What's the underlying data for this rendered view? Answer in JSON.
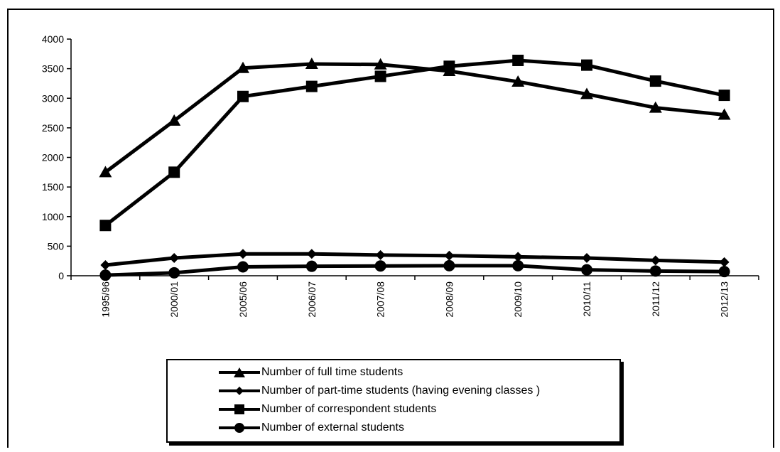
{
  "chart_data": {
    "type": "line",
    "categories": [
      "1995/96",
      "2000/01",
      "2005/06",
      "2006/07",
      "2007/08",
      "2008/09",
      "2009/10",
      "2010/11",
      "2011/12",
      "2012/13"
    ],
    "ylim": [
      0,
      4000
    ],
    "yticks": [
      0,
      500,
      1000,
      1500,
      2000,
      2500,
      3000,
      3500,
      4000
    ],
    "grid": false,
    "legend_position": "bottom",
    "series": [
      {
        "name": "Number of full time students",
        "marker": "triangle",
        "color": "#000000",
        "values": [
          1750,
          2620,
          3510,
          3580,
          3570,
          3460,
          3280,
          3070,
          2840,
          2720
        ]
      },
      {
        "name": "Number of  part-time students (having evening classes )",
        "marker": "diamond",
        "color": "#000000",
        "values": [
          180,
          300,
          370,
          370,
          350,
          340,
          320,
          300,
          260,
          230
        ]
      },
      {
        "name": "Number of correspondent students",
        "marker": "square",
        "color": "#000000",
        "values": [
          850,
          1750,
          3030,
          3200,
          3370,
          3540,
          3640,
          3560,
          3290,
          3050
        ]
      },
      {
        "name": "Number of external students",
        "marker": "circle",
        "color": "#000000",
        "values": [
          10,
          50,
          150,
          160,
          165,
          170,
          170,
          100,
          80,
          70
        ]
      }
    ]
  }
}
